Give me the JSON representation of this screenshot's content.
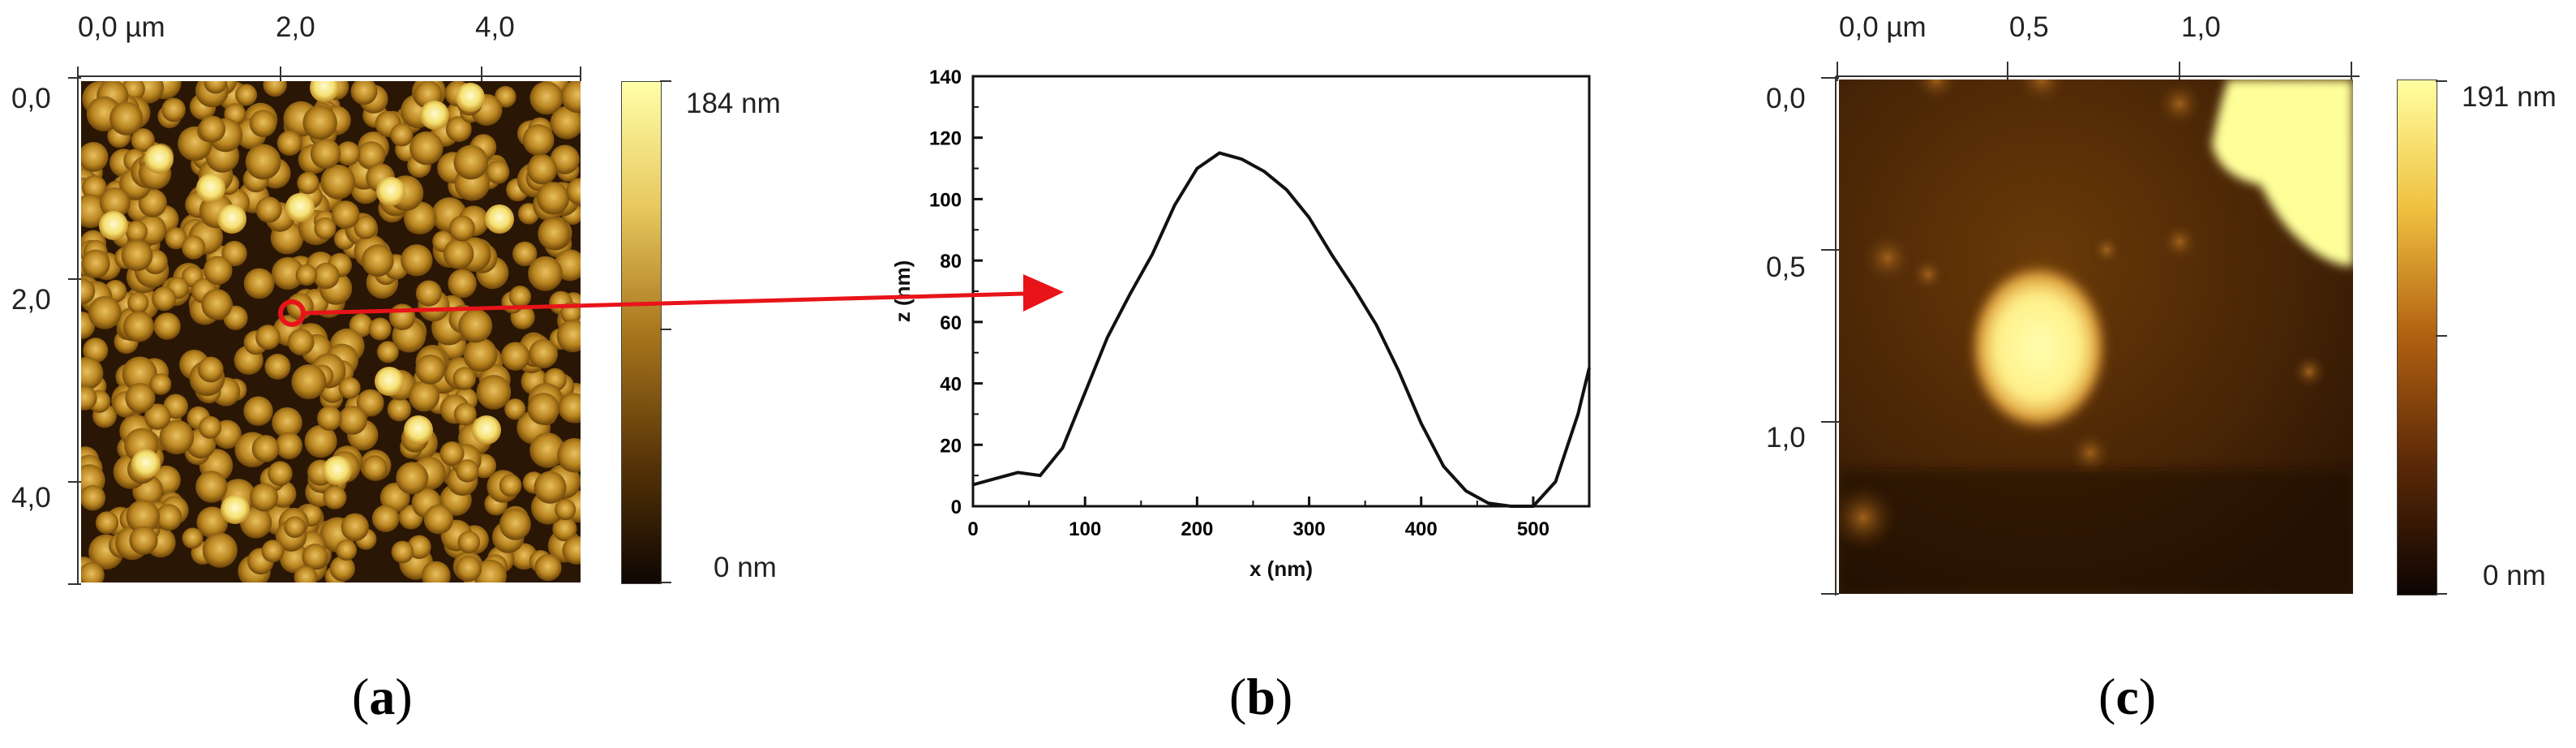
{
  "colors": {
    "afm_dark": "#1a0f05",
    "afm_mid": "#8a5a12",
    "afm_bright": "#ffff9a",
    "arrow": "#e8141a",
    "line": "#111111"
  },
  "panel_a": {
    "x_ticks": [
      "0,0 µm",
      "2,0",
      "4,0"
    ],
    "y_ticks": [
      "0,0",
      "2,0",
      "4,0"
    ],
    "colorbar_top": "184 nm",
    "colorbar_bottom": "0 nm",
    "caption_letter": "a"
  },
  "panel_b": {
    "caption_letter": "b"
  },
  "panel_c": {
    "x_ticks": [
      "0,0 µm",
      "0,5",
      "1,0"
    ],
    "y_ticks": [
      "0,0",
      "0,5",
      "1,0"
    ],
    "colorbar_top": "191 nm",
    "colorbar_bottom": "0 nm",
    "caption_letter": "c"
  },
  "chart_data": {
    "type": "line",
    "title": "",
    "xlabel": "x (nm)",
    "ylabel": "z (nm)",
    "xlim": [
      0,
      550
    ],
    "ylim": [
      0,
      140
    ],
    "x_ticks": [
      0,
      100,
      200,
      300,
      400,
      500
    ],
    "y_ticks": [
      0,
      20,
      40,
      60,
      80,
      100,
      120,
      140
    ],
    "grid": false,
    "series": [
      {
        "x": [
          0,
          20,
          40,
          60,
          80,
          100,
          120,
          140,
          160,
          180,
          200,
          220,
          240,
          260,
          280,
          300,
          320,
          340,
          360,
          380,
          400,
          420,
          440,
          460,
          480,
          500,
          520,
          540,
          550
        ],
        "y": [
          7,
          9,
          11,
          10,
          19,
          37,
          55,
          69,
          82,
          98,
          110,
          115,
          113,
          109,
          103,
          94,
          82,
          71,
          59,
          44,
          27,
          13,
          5,
          1,
          0,
          0,
          8,
          30,
          45
        ]
      }
    ]
  }
}
